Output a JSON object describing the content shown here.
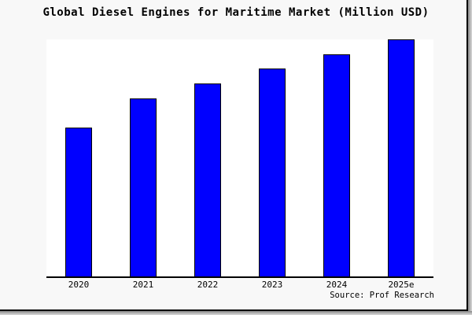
{
  "chart_data": {
    "type": "bar",
    "title": "Global Diesel Engines for Maritime Market (Million USD)",
    "categories": [
      "2020",
      "2021",
      "2022",
      "2023",
      "2024",
      "2025e"
    ],
    "values": [
      189,
      226,
      245,
      264,
      282,
      301
    ],
    "values_note": "Y-axis has no tick labels in the image; values are relative bar magnitudes (2025e is about 1.59x the 2020 bar)",
    "xlabel": "",
    "ylabel": "",
    "ylim": [
      0,
      301
    ],
    "grid": false,
    "legend": false,
    "bar_color": "#0000ff",
    "bar_border_color": "#000000"
  },
  "source": "Source: Prof Research",
  "colors": {
    "figure_bg": "#f8f8f8",
    "plot_bg": "#ffffff",
    "axis_color": "#000000",
    "text_color": "#000000"
  }
}
